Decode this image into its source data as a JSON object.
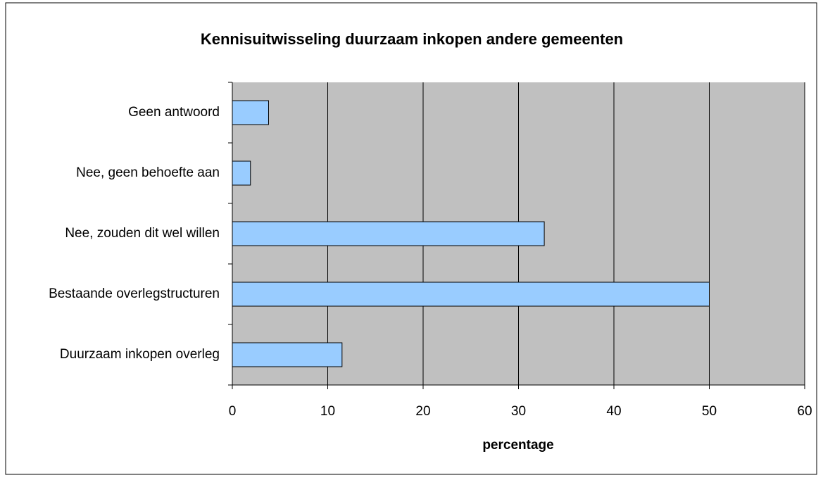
{
  "chart_data": {
    "type": "barh",
    "title": "Kennisuitwisseling duurzaam inkopen andere gemeenten",
    "categories": [
      "Geen antwoord",
      "Nee, geen behoefte aan",
      "Nee, zouden dit wel willen",
      "Bestaande overlegstructuren",
      "Duurzaam inkopen overleg"
    ],
    "values": [
      3.8,
      1.9,
      32.7,
      50,
      11.5
    ],
    "color": "#99ccff",
    "xlabel": "percentage",
    "xlim": [
      0,
      60
    ],
    "xticks": [
      0,
      10,
      20,
      30,
      40,
      50,
      60
    ],
    "grid": true
  }
}
